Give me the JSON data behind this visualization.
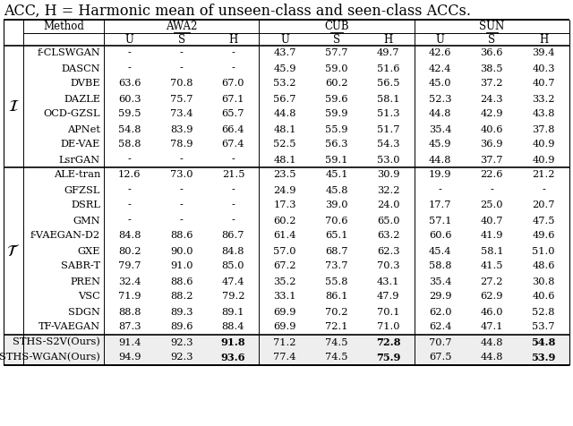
{
  "title": "ACC, H = Harmonic mean of unseen-class and seen-class ACCs.",
  "rows_I": [
    {
      "method": "f-CLSWGAN",
      "awa2": [
        "-",
        "-",
        "-"
      ],
      "cub": [
        "43.7",
        "57.7",
        "49.7"
      ],
      "sun": [
        "42.6",
        "36.6",
        "39.4"
      ]
    },
    {
      "method": "DASCN",
      "awa2": [
        "-",
        "-",
        "-"
      ],
      "cub": [
        "45.9",
        "59.0",
        "51.6"
      ],
      "sun": [
        "42.4",
        "38.5",
        "40.3"
      ]
    },
    {
      "method": "DVBE",
      "awa2": [
        "63.6",
        "70.8",
        "67.0"
      ],
      "cub": [
        "53.2",
        "60.2",
        "56.5"
      ],
      "sun": [
        "45.0",
        "37.2",
        "40.7"
      ]
    },
    {
      "method": "DAZLE",
      "awa2": [
        "60.3",
        "75.7",
        "67.1"
      ],
      "cub": [
        "56.7",
        "59.6",
        "58.1"
      ],
      "sun": [
        "52.3",
        "24.3",
        "33.2"
      ]
    },
    {
      "method": "OCD-GZSL",
      "awa2": [
        "59.5",
        "73.4",
        "65.7"
      ],
      "cub": [
        "44.8",
        "59.9",
        "51.3"
      ],
      "sun": [
        "44.8",
        "42.9",
        "43.8"
      ]
    },
    {
      "method": "APNet",
      "awa2": [
        "54.8",
        "83.9",
        "66.4"
      ],
      "cub": [
        "48.1",
        "55.9",
        "51.7"
      ],
      "sun": [
        "35.4",
        "40.6",
        "37.8"
      ]
    },
    {
      "method": "DE-VAE",
      "awa2": [
        "58.8",
        "78.9",
        "67.4"
      ],
      "cub": [
        "52.5",
        "56.3",
        "54.3"
      ],
      "sun": [
        "45.9",
        "36.9",
        "40.9"
      ]
    },
    {
      "method": "LsrGAN",
      "awa2": [
        "-",
        "-",
        "-"
      ],
      "cub": [
        "48.1",
        "59.1",
        "53.0"
      ],
      "sun": [
        "44.8",
        "37.7",
        "40.9"
      ]
    }
  ],
  "rows_T": [
    {
      "method": "ALE-tran",
      "awa2": [
        "12.6",
        "73.0",
        "21.5"
      ],
      "cub": [
        "23.5",
        "45.1",
        "30.9"
      ],
      "sun": [
        "19.9",
        "22.6",
        "21.2"
      ]
    },
    {
      "method": "GFZSL",
      "awa2": [
        "-",
        "-",
        "-"
      ],
      "cub": [
        "24.9",
        "45.8",
        "32.2"
      ],
      "sun": [
        "-",
        "-",
        "-"
      ]
    },
    {
      "method": "DSRL",
      "awa2": [
        "-",
        "-",
        "-"
      ],
      "cub": [
        "17.3",
        "39.0",
        "24.0"
      ],
      "sun": [
        "17.7",
        "25.0",
        "20.7"
      ]
    },
    {
      "method": "GMN",
      "awa2": [
        "-",
        "-",
        "-"
      ],
      "cub": [
        "60.2",
        "70.6",
        "65.0"
      ],
      "sun": [
        "57.1",
        "40.7",
        "47.5"
      ]
    },
    {
      "method": "f-VAEGAN-D2",
      "awa2": [
        "84.8",
        "88.6",
        "86.7"
      ],
      "cub": [
        "61.4",
        "65.1",
        "63.2"
      ],
      "sun": [
        "60.6",
        "41.9",
        "49.6"
      ]
    },
    {
      "method": "GXE",
      "awa2": [
        "80.2",
        "90.0",
        "84.8"
      ],
      "cub": [
        "57.0",
        "68.7",
        "62.3"
      ],
      "sun": [
        "45.4",
        "58.1",
        "51.0"
      ]
    },
    {
      "method": "SABR-T",
      "awa2": [
        "79.7",
        "91.0",
        "85.0"
      ],
      "cub": [
        "67.2",
        "73.7",
        "70.3"
      ],
      "sun": [
        "58.8",
        "41.5",
        "48.6"
      ]
    },
    {
      "method": "PREN",
      "awa2": [
        "32.4",
        "88.6",
        "47.4"
      ],
      "cub": [
        "35.2",
        "55.8",
        "43.1"
      ],
      "sun": [
        "35.4",
        "27.2",
        "30.8"
      ]
    },
    {
      "method": "VSC",
      "awa2": [
        "71.9",
        "88.2",
        "79.2"
      ],
      "cub": [
        "33.1",
        "86.1",
        "47.9"
      ],
      "sun": [
        "29.9",
        "62.9",
        "40.6"
      ]
    },
    {
      "method": "SDGN",
      "awa2": [
        "88.8",
        "89.3",
        "89.1"
      ],
      "cub": [
        "69.9",
        "70.2",
        "70.1"
      ],
      "sun": [
        "62.0",
        "46.0",
        "52.8"
      ]
    },
    {
      "method": "TF-VAEGAN",
      "awa2": [
        "87.3",
        "89.6",
        "88.4"
      ],
      "cub": [
        "69.9",
        "72.1",
        "71.0"
      ],
      "sun": [
        "62.4",
        "47.1",
        "53.7"
      ]
    }
  ],
  "rows_ours": [
    {
      "method": "STHS-S2V(Ours)",
      "awa2": [
        "91.4",
        "92.3",
        "91.8"
      ],
      "cub": [
        "71.2",
        "74.5",
        "72.8"
      ],
      "sun": [
        "70.7",
        "44.8",
        "54.8"
      ]
    },
    {
      "method": "STHS-WGAN(Ours)",
      "awa2": [
        "94.9",
        "92.3",
        "93.6"
      ],
      "cub": [
        "77.4",
        "74.5",
        "75.9"
      ],
      "sun": [
        "67.5",
        "44.8",
        "53.9"
      ]
    }
  ],
  "title_fontsize": 11.5,
  "data_fontsize": 8.2,
  "header_fontsize": 8.5,
  "sec_fontsize": 13
}
